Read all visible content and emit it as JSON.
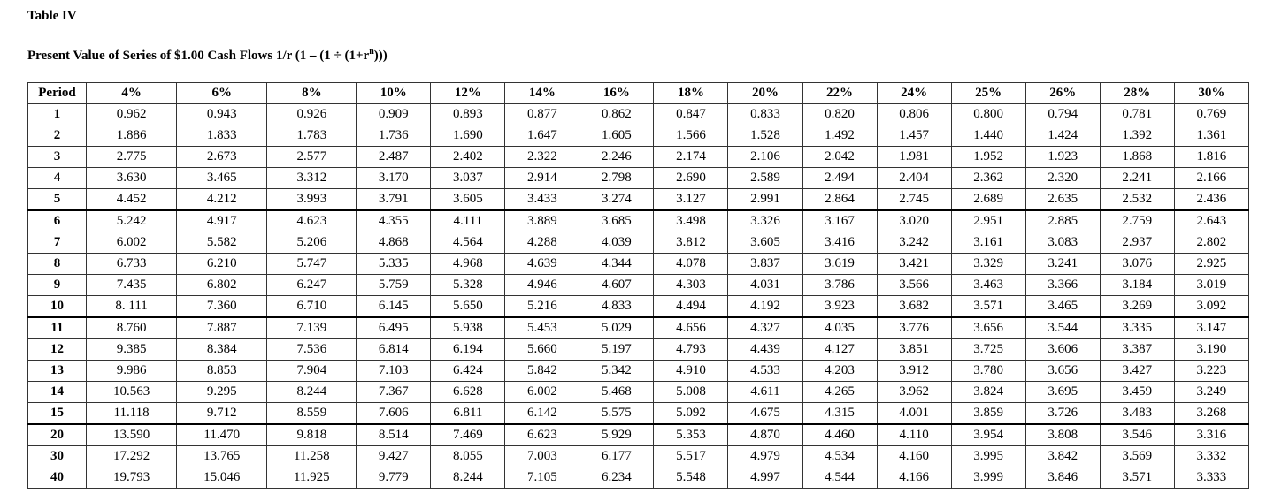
{
  "title": "Table IV",
  "subtitle": {
    "text": "Present Value of Series of $1.00 Cash Flows 1/r (1 – (1 ÷ (1+r",
    "superscript": "n",
    "tail": ")))"
  },
  "table": {
    "header": [
      "Period",
      "4%",
      "6%",
      "8%",
      "10%",
      "12%",
      "14%",
      "16%",
      "18%",
      "20%",
      "22%",
      "24%",
      "25%",
      "26%",
      "28%",
      "30%"
    ],
    "rows": [
      [
        "1",
        "0.962",
        "0.943",
        "0.926",
        "0.909",
        "0.893",
        "0.877",
        "0.862",
        "0.847",
        "0.833",
        "0.820",
        "0.806",
        "0.800",
        "0.794",
        "0.781",
        "0.769"
      ],
      [
        "2",
        "1.886",
        "1.833",
        "1.783",
        "1.736",
        "1.690",
        "1.647",
        "1.605",
        "1.566",
        "1.528",
        "1.492",
        "1.457",
        "1.440",
        "1.424",
        "1.392",
        "1.361"
      ],
      [
        "3",
        "2.775",
        "2.673",
        "2.577",
        "2.487",
        "2.402",
        "2.322",
        "2.246",
        "2.174",
        "2.106",
        "2.042",
        "1.981",
        "1.952",
        "1.923",
        "1.868",
        "1.816"
      ],
      [
        "4",
        "3.630",
        "3.465",
        "3.312",
        "3.170",
        "3.037",
        "2.914",
        "2.798",
        "2.690",
        "2.589",
        "2.494",
        "2.404",
        "2.362",
        "2.320",
        "2.241",
        "2.166"
      ],
      [
        "5",
        "4.452",
        "4.212",
        "3.993",
        "3.791",
        "3.605",
        "3.433",
        "3.274",
        "3.127",
        "2.991",
        "2.864",
        "2.745",
        "2.689",
        "2.635",
        "2.532",
        "2.436"
      ],
      [
        "6",
        "5.242",
        "4.917",
        "4.623",
        "4.355",
        "4.111",
        "3.889",
        "3.685",
        "3.498",
        "3.326",
        "3.167",
        "3.020",
        "2.951",
        "2.885",
        "2.759",
        "2.643"
      ],
      [
        "7",
        "6.002",
        "5.582",
        "5.206",
        "4.868",
        "4.564",
        "4.288",
        "4.039",
        "3.812",
        "3.605",
        "3.416",
        "3.242",
        "3.161",
        "3.083",
        "2.937",
        "2.802"
      ],
      [
        "8",
        "6.733",
        "6.210",
        "5.747",
        "5.335",
        "4.968",
        "4.639",
        "4.344",
        "4.078",
        "3.837",
        "3.619",
        "3.421",
        "3.329",
        "3.241",
        "3.076",
        "2.925"
      ],
      [
        "9",
        "7.435",
        "6.802",
        "6.247",
        "5.759",
        "5.328",
        "4.946",
        "4.607",
        "4.303",
        "4.031",
        "3.786",
        "3.566",
        "3.463",
        "3.366",
        "3.184",
        "3.019"
      ],
      [
        "10",
        "8. 111",
        "7.360",
        "6.710",
        "6.145",
        "5.650",
        "5.216",
        "4.833",
        "4.494",
        "4.192",
        "3.923",
        "3.682",
        "3.571",
        "3.465",
        "3.269",
        "3.092"
      ],
      [
        "11",
        "8.760",
        "7.887",
        "7.139",
        "6.495",
        "5.938",
        "5.453",
        "5.029",
        "4.656",
        "4.327",
        "4.035",
        "3.776",
        "3.656",
        "3.544",
        "3.335",
        "3.147"
      ],
      [
        "12",
        "9.385",
        "8.384",
        "7.536",
        "6.814",
        "6.194",
        "5.660",
        "5.197",
        "4.793",
        "4.439",
        "4.127",
        "3.851",
        "3.725",
        "3.606",
        "3.387",
        "3.190"
      ],
      [
        "13",
        "9.986",
        "8.853",
        "7.904",
        "7.103",
        "6.424",
        "5.842",
        "5.342",
        "4.910",
        "4.533",
        "4.203",
        "3.912",
        "3.780",
        "3.656",
        "3.427",
        "3.223"
      ],
      [
        "14",
        "10.563",
        "9.295",
        "8.244",
        "7.367",
        "6.628",
        "6.002",
        "5.468",
        "5.008",
        "4.611",
        "4.265",
        "3.962",
        "3.824",
        "3.695",
        "3.459",
        "3.249"
      ],
      [
        "15",
        "11.118",
        "9.712",
        "8.559",
        "7.606",
        "6.811",
        "6.142",
        "5.575",
        "5.092",
        "4.675",
        "4.315",
        "4.001",
        "3.859",
        "3.726",
        "3.483",
        "3.268"
      ],
      [
        "20",
        "13.590",
        "11.470",
        "9.818",
        "8.514",
        "7.469",
        "6.623",
        "5.929",
        "5.353",
        "4.870",
        "4.460",
        "4.110",
        "3.954",
        "3.808",
        "3.546",
        "3.316"
      ],
      [
        "30",
        "17.292",
        "13.765",
        "11.258",
        "9.427",
        "8.055",
        "7.003",
        "6.177",
        "5.517",
        "4.979",
        "4.534",
        "4.160",
        "3.995",
        "3.842",
        "3.569",
        "3.332"
      ],
      [
        "40",
        "19.793",
        "15.046",
        "11.925",
        "9.779",
        "8.244",
        "7.105",
        "6.234",
        "5.548",
        "4.997",
        "4.544",
        "4.166",
        "3.999",
        "3.846",
        "3.571",
        "3.333"
      ]
    ]
  }
}
